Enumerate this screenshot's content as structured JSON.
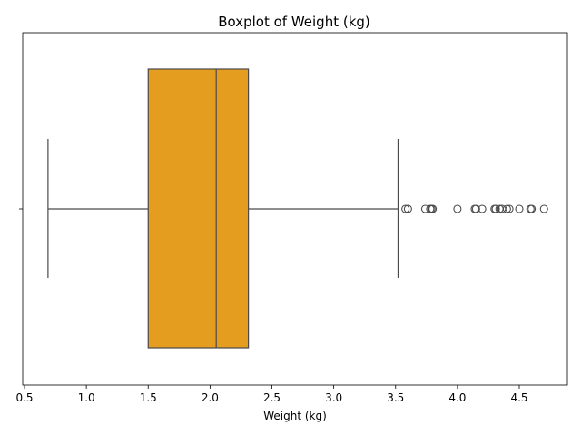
{
  "chart_data": {
    "type": "boxplot",
    "title": "Boxplot of Weight (kg)",
    "xlabel": "Weight (kg)",
    "ylabel": "",
    "xlim": [
      0.5,
      4.9
    ],
    "xticks": [
      0.5,
      1.0,
      1.5,
      2.0,
      2.5,
      3.0,
      3.5,
      4.0,
      4.5
    ],
    "xtick_labels": [
      "0.5",
      "1.0",
      "1.5",
      "2.0",
      "2.5",
      "3.0",
      "3.5",
      "4.0",
      "4.5"
    ],
    "orientation": "horizontal",
    "box": {
      "whisker_low": 0.69,
      "q1": 1.5,
      "median": 2.05,
      "q3": 2.31,
      "whisker_high": 3.52
    },
    "outliers": [
      3.58,
      3.6,
      3.74,
      3.78,
      3.79,
      3.8,
      4.0,
      4.14,
      4.15,
      4.2,
      4.3,
      4.31,
      4.34,
      4.36,
      4.4,
      4.42,
      4.5,
      4.59,
      4.6,
      4.7
    ],
    "grid": false,
    "colors": {
      "box_fill": "#E49D1E",
      "line": "#4a4a4a",
      "axis": "#000000"
    }
  }
}
